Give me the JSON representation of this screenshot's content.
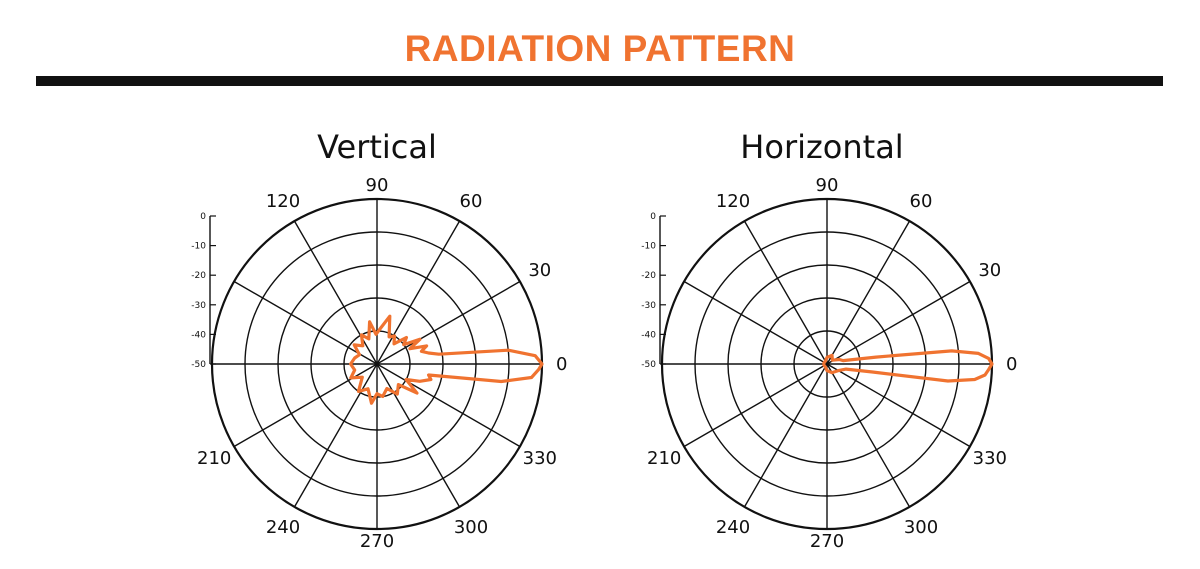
{
  "header": {
    "title": "RADIATION PATTERN"
  },
  "colors": {
    "title": "#f07330",
    "rule": "#111111",
    "grid": "#111111",
    "pattern": "#f07330"
  },
  "chart_data": [
    {
      "type": "polar",
      "title": "Vertical",
      "angle_labels": [
        "0",
        "30",
        "60",
        "90",
        "120",
        "210",
        "240",
        "270",
        "300",
        "330"
      ],
      "angle_values": [
        0,
        30,
        60,
        90,
        120,
        210,
        240,
        270,
        300,
        330
      ],
      "radial_labels": [
        "0",
        "-10",
        "-20",
        "-30",
        "-40",
        "-50"
      ],
      "radial_values": [
        0,
        -10,
        -20,
        -30,
        -40,
        -50
      ],
      "rlim": [
        -50,
        0
      ],
      "grid": true,
      "series": [
        {
          "angles": [
            0,
            3,
            6,
            9,
            12,
            16,
            20,
            25,
            30,
            36,
            42,
            50,
            58,
            66,
            75,
            84,
            92,
            100,
            108,
            118,
            128,
            140,
            152,
            165,
            180,
            195,
            208,
            222,
            236,
            250,
            262,
            270,
            280,
            292,
            304,
            316,
            324,
            332,
            338,
            344,
            348,
            352,
            355,
            358,
            360
          ],
          "values": [
            0,
            -2,
            -10,
            -31,
            -34,
            -36,
            -34,
            -39,
            -35,
            -40,
            -38,
            -42,
            -40,
            -41,
            -35,
            -39,
            -41,
            -37,
            -42,
            -40,
            -43,
            -41,
            -44,
            -43,
            -42,
            -43,
            -41,
            -44,
            -40,
            -42,
            -38,
            -41,
            -40,
            -42,
            -39,
            -41,
            -35,
            -40,
            -36,
            -33,
            -34,
            -12,
            -3,
            -1,
            0
          ]
        }
      ]
    },
    {
      "type": "polar",
      "title": "Horizontal",
      "angle_labels": [
        "0",
        "30",
        "60",
        "90",
        "120",
        "210",
        "240",
        "270",
        "300",
        "330"
      ],
      "angle_values": [
        0,
        30,
        60,
        90,
        120,
        210,
        240,
        270,
        300,
        330
      ],
      "radial_labels": [
        "0",
        "-10",
        "-20",
        "-30",
        "-40",
        "-50"
      ],
      "radial_values": [
        0,
        -10,
        -20,
        -30,
        -40,
        -50
      ],
      "rlim": [
        -50,
        0
      ],
      "grid": true,
      "series": [
        {
          "angles": [
            0,
            2,
            4,
            6,
            8,
            12,
            20,
            35,
            60,
            90,
            120,
            160,
            200,
            240,
            270,
            300,
            330,
            345,
            350,
            352,
            354,
            356,
            358,
            360
          ],
          "values": [
            0,
            -1,
            -4,
            -12,
            -35,
            -45,
            -46,
            -48,
            -47,
            -48,
            -49,
            -49,
            -49,
            -49,
            -48,
            -47,
            -46,
            -44,
            -36,
            -13,
            -5,
            -2,
            -1,
            0
          ]
        }
      ]
    }
  ]
}
